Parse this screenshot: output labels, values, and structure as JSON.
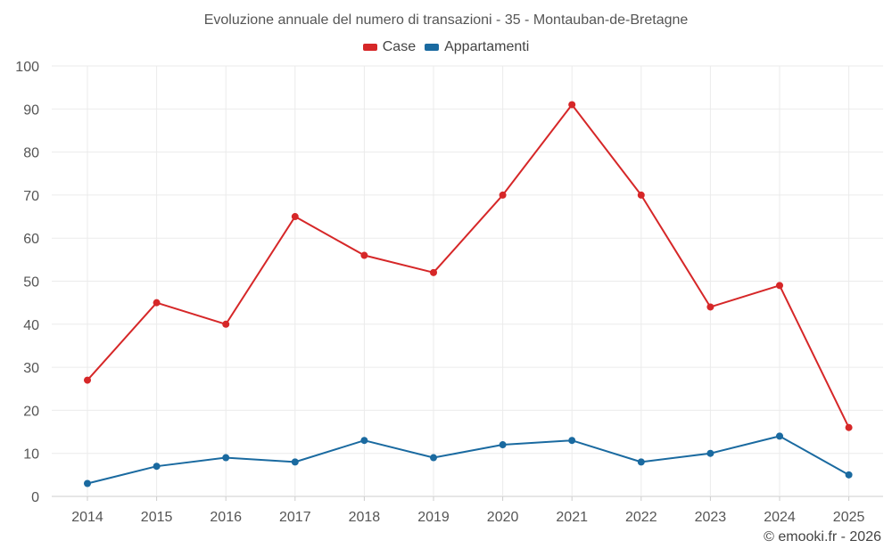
{
  "chart_data": {
    "type": "line",
    "title": "Evoluzione annuale del numero di transazioni - 35 - Montauban-de-Bretagne",
    "xlabel": "",
    "ylabel": "",
    "categories": [
      "2014",
      "2015",
      "2016",
      "2017",
      "2018",
      "2019",
      "2020",
      "2021",
      "2022",
      "2023",
      "2024",
      "2025"
    ],
    "yticks": [
      "0",
      "10",
      "20",
      "30",
      "40",
      "50",
      "60",
      "70",
      "80",
      "90",
      "100"
    ],
    "ylim": [
      0,
      100
    ],
    "grid": true,
    "legend_position": "top-center",
    "series": [
      {
        "name": "Case",
        "color": "#d62728",
        "values": [
          27,
          45,
          40,
          65,
          56,
          52,
          70,
          91,
          70,
          44,
          49,
          16
        ]
      },
      {
        "name": "Appartamenti",
        "color": "#1a6aa0",
        "values": [
          3,
          7,
          9,
          8,
          13,
          9,
          12,
          13,
          8,
          10,
          14,
          5
        ]
      }
    ]
  },
  "credit": "© emooki.fr - 2026"
}
